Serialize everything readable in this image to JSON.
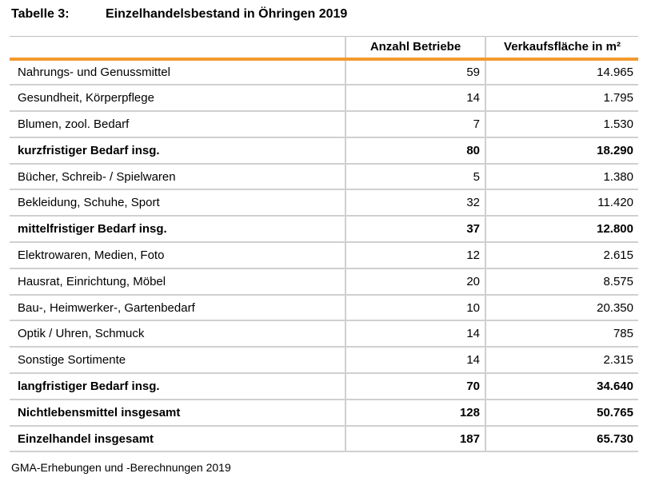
{
  "caption": {
    "label": "Tabelle 3:",
    "title": "Einzelhandelsbestand in Öhringen 2019"
  },
  "table": {
    "headers": [
      "",
      "Anzahl Betriebe",
      "Verkaufsfläche in m²"
    ],
    "rows": [
      {
        "category": "Nahrungs- und Genussmittel",
        "betriebe": "59",
        "flaeche": "14.965",
        "bold": false
      },
      {
        "category": "Gesundheit, Körperpflege",
        "betriebe": "14",
        "flaeche": "1.795",
        "bold": false
      },
      {
        "category": "Blumen, zool. Bedarf",
        "betriebe": "7",
        "flaeche": "1.530",
        "bold": false
      },
      {
        "category": "kurzfristiger Bedarf insg.",
        "betriebe": "80",
        "flaeche": "18.290",
        "bold": true
      },
      {
        "category": "Bücher, Schreib- / Spielwaren",
        "betriebe": "5",
        "flaeche": "1.380",
        "bold": false
      },
      {
        "category": "Bekleidung, Schuhe, Sport",
        "betriebe": "32",
        "flaeche": "11.420",
        "bold": false
      },
      {
        "category": "mittelfristiger Bedarf insg.",
        "betriebe": "37",
        "flaeche": "12.800",
        "bold": true
      },
      {
        "category": "Elektrowaren, Medien, Foto",
        "betriebe": "12",
        "flaeche": "2.615",
        "bold": false
      },
      {
        "category": "Hausrat, Einrichtung, Möbel",
        "betriebe": "20",
        "flaeche": "8.575",
        "bold": false
      },
      {
        "category": "Bau-, Heimwerker-, Gartenbedarf",
        "betriebe": "10",
        "flaeche": "20.350",
        "bold": false
      },
      {
        "category": "Optik / Uhren, Schmuck",
        "betriebe": "14",
        "flaeche": "785",
        "bold": false
      },
      {
        "category": "Sonstige Sortimente",
        "betriebe": "14",
        "flaeche": "2.315",
        "bold": false
      },
      {
        "category": "langfristiger Bedarf insg.",
        "betriebe": "70",
        "flaeche": "34.640",
        "bold": true
      },
      {
        "category": "Nichtlebensmittel insgesamt",
        "betriebe": "128",
        "flaeche": "50.765",
        "bold": true
      },
      {
        "category": "Einzelhandel insgesamt",
        "betriebe": "187",
        "flaeche": "65.730",
        "bold": true
      }
    ]
  },
  "source": "GMA-Erhebungen und -Berechnungen 2019",
  "colors": {
    "header_rule": "#f29a2e",
    "grid_line": "#d0d0d0"
  }
}
